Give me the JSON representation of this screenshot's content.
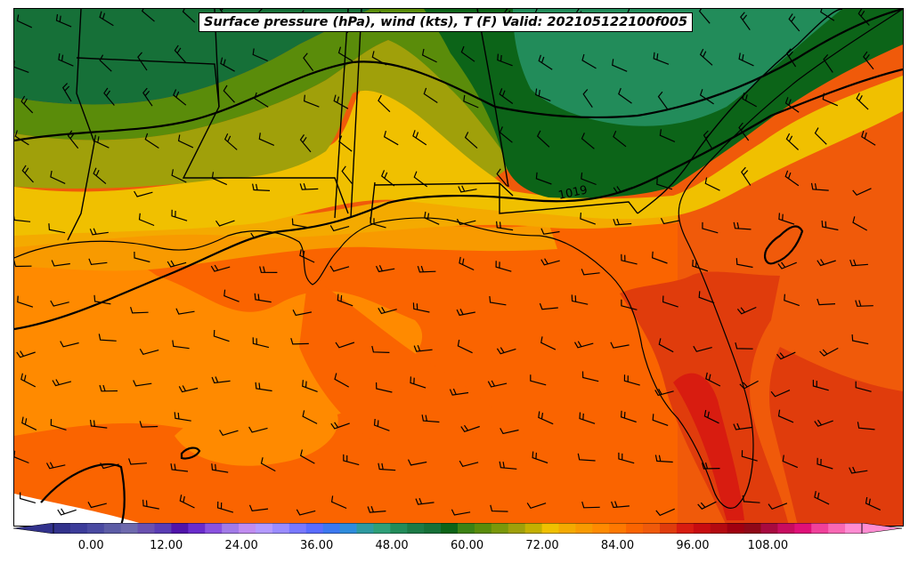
{
  "title": "Surface pressure (hPa), wind (kts), T (F) Valid: 202105122100f005",
  "isobar_label": "1019",
  "colorbar": {
    "ticks": [
      "0.00",
      "12.00",
      "24.00",
      "36.00",
      "48.00",
      "60.00",
      "72.00",
      "84.00",
      "96.00",
      "108.00"
    ],
    "tick_values": [
      0,
      12,
      24,
      36,
      48,
      60,
      72,
      84,
      96,
      108
    ],
    "min": -6,
    "max": 123,
    "step": 3,
    "colors": [
      "#32328c",
      "#3c3c9a",
      "#4a4aa2",
      "#5c5ca6",
      "#6e6aae",
      "#6a50b0",
      "#5a3cb4",
      "#5014aa",
      "#6a2ccc",
      "#8a52e0",
      "#a27ae8",
      "#c08cf0",
      "#b49aff",
      "#9a8cff",
      "#7878ff",
      "#5a6cff",
      "#3c78f0",
      "#2e8cdc",
      "#2e9aa0",
      "#2ea078",
      "#228c5a",
      "#1c7a46",
      "#167038",
      "#0c6418",
      "#3c8214",
      "#5a8c0a",
      "#7a980a",
      "#a0a00a",
      "#c4b000",
      "#f0c000",
      "#f4aa00",
      "#f89a00",
      "#ff8a00",
      "#fe7800",
      "#fa6400",
      "#f05a0a",
      "#e03c0c",
      "#d81c10",
      "#c80c10",
      "#b40a10",
      "#a00010",
      "#900818",
      "#a80a40",
      "#c80c60",
      "#e01078",
      "#f0409a",
      "#f868b4",
      "#ff8cd2"
    ]
  },
  "legend_variable": "T (F)",
  "colors": {
    "warm_orange": "#ff8a00",
    "deep_orange": "#fa6400",
    "red_orange": "#f05a0a",
    "yellow": "#f0c000",
    "olive": "#a0a00a",
    "green": "#5a8c0a",
    "dark_green": "#0c6418",
    "teal_green": "#228c5a"
  }
}
